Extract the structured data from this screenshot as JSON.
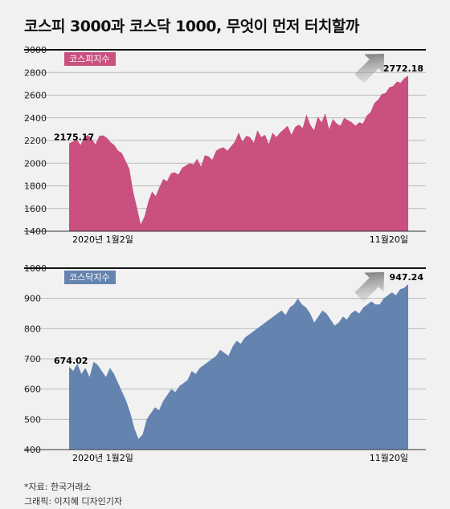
{
  "title": "코스피 3000과 코스닥 1000, 무엇이 먼저 터치할까",
  "footer": {
    "source": "*자료: 한국거래소",
    "credit": "그래픽: 이지혜 디자인기자"
  },
  "chart_data": [
    {
      "type": "area",
      "legend": "코스피지수",
      "color": "#c9507f",
      "x_start_label": "2020년 1월2일",
      "x_end_label": "11월20일",
      "ylim": [
        1400,
        3000
      ],
      "yticks": [
        1400,
        1600,
        1800,
        2000,
        2200,
        2400,
        2600,
        2800,
        3000
      ],
      "start_value_label": "2175.17",
      "end_value_label": "2772.18",
      "series": [
        {
          "values": [
            2175,
            2190,
            2215,
            2160,
            2230,
            2250,
            2215,
            2165,
            2240,
            2245,
            2225,
            2185,
            2160,
            2110,
            2090,
            2020,
            1950,
            1750,
            1610,
            1460,
            1530,
            1660,
            1750,
            1710,
            1790,
            1860,
            1840,
            1910,
            1920,
            1900,
            1960,
            1980,
            2000,
            1990,
            2040,
            1970,
            2070,
            2060,
            2030,
            2110,
            2130,
            2140,
            2110,
            2150,
            2190,
            2270,
            2190,
            2240,
            2230,
            2180,
            2290,
            2230,
            2250,
            2170,
            2270,
            2230,
            2270,
            2300,
            2330,
            2250,
            2320,
            2340,
            2310,
            2430,
            2340,
            2290,
            2410,
            2360,
            2440,
            2300,
            2390,
            2350,
            2330,
            2400,
            2380,
            2360,
            2330,
            2360,
            2350,
            2420,
            2450,
            2530,
            2560,
            2610,
            2620,
            2670,
            2680,
            2720,
            2710,
            2750,
            2772
          ]
        }
      ]
    },
    {
      "type": "area",
      "legend": "코스닥지수",
      "color": "#6583af",
      "x_start_label": "2020년 1월2일",
      "x_end_label": "11월20일",
      "ylim": [
        400,
        1000
      ],
      "yticks": [
        400,
        500,
        600,
        700,
        800,
        900,
        1000
      ],
      "start_value_label": "674.02",
      "end_value_label": "947.24",
      "series": [
        {
          "values": [
            674,
            660,
            685,
            650,
            670,
            640,
            690,
            680,
            660,
            640,
            670,
            650,
            620,
            590,
            560,
            520,
            470,
            435,
            450,
            500,
            520,
            540,
            530,
            560,
            580,
            600,
            590,
            610,
            620,
            630,
            660,
            650,
            670,
            680,
            690,
            700,
            710,
            730,
            720,
            710,
            740,
            760,
            750,
            770,
            780,
            790,
            800,
            810,
            820,
            830,
            840,
            850,
            860,
            845,
            870,
            880,
            900,
            880,
            870,
            850,
            820,
            840,
            860,
            850,
            830,
            810,
            820,
            840,
            830,
            850,
            860,
            850,
            870,
            880,
            890,
            880,
            880,
            900,
            910,
            920,
            910,
            930,
            935,
            947
          ]
        }
      ]
    }
  ]
}
